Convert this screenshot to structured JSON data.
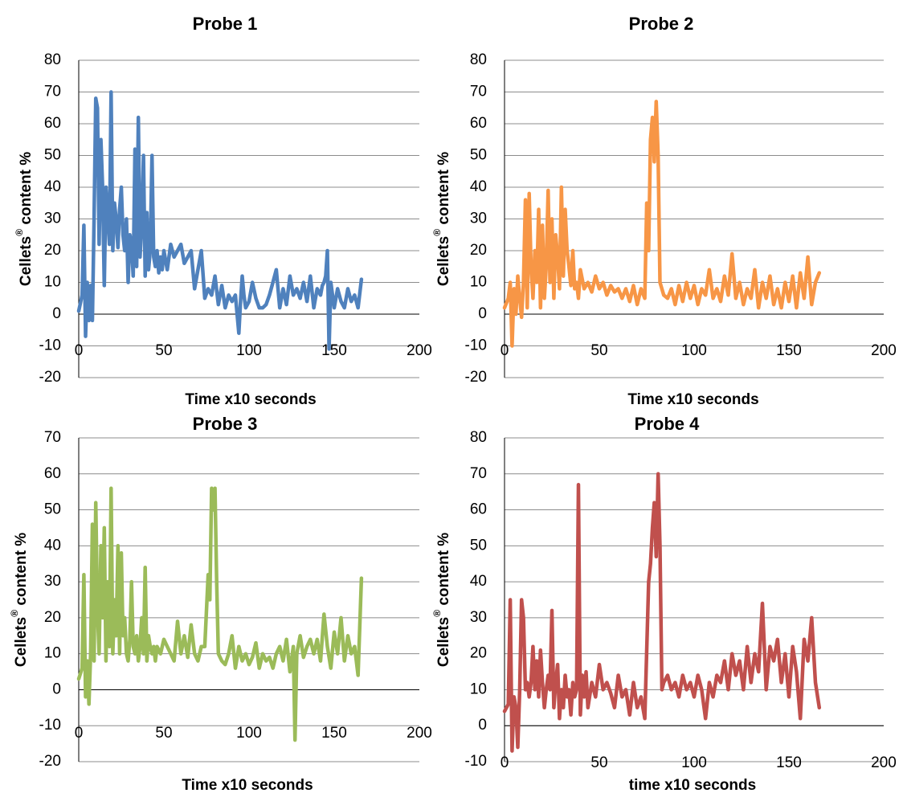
{
  "chart_data": [
    {
      "type": "line",
      "title": "Probe 1",
      "xlabel": "Time x10 seconds",
      "ylabel": "Cellets® content %",
      "xlim": [
        0,
        200
      ],
      "xticks": [
        0,
        50,
        100,
        150,
        200
      ],
      "ylim": [
        -20,
        80
      ],
      "yticks": [
        -20,
        -10,
        0,
        10,
        20,
        30,
        40,
        50,
        60,
        70,
        80
      ],
      "grid": true,
      "color": "#4f81bd",
      "series": [
        {
          "x": [
            0,
            2,
            3,
            4,
            5,
            6,
            7,
            8,
            9,
            10,
            11,
            12,
            13,
            14,
            15,
            16,
            17,
            18,
            19,
            20,
            21,
            22,
            23,
            24,
            25,
            26,
            27,
            28,
            29,
            30,
            31,
            32,
            33,
            34,
            35,
            36,
            37,
            38,
            39,
            40,
            41,
            42,
            43,
            44,
            45,
            46,
            47,
            48,
            49,
            50,
            52,
            54,
            56,
            58,
            60,
            62,
            64,
            66,
            68,
            70,
            72,
            74,
            76,
            78,
            80,
            82,
            84,
            86,
            88,
            90,
            92,
            94,
            95,
            96,
            97,
            98,
            100,
            102,
            104,
            106,
            108,
            110,
            112,
            114,
            116,
            118,
            120,
            122,
            124,
            126,
            128,
            130,
            132,
            134,
            136,
            138,
            140,
            142,
            143,
            144,
            145,
            146,
            147,
            148,
            150,
            152,
            154,
            156,
            158,
            160,
            162,
            164,
            166
          ],
          "values": [
            1,
            6,
            28,
            -7,
            10,
            -2,
            9,
            -2,
            30,
            68,
            65,
            22,
            55,
            40,
            9,
            40,
            32,
            22,
            70,
            20,
            35,
            30,
            21,
            33,
            40,
            25,
            20,
            30,
            10,
            25,
            22,
            12,
            52,
            15,
            62,
            18,
            28,
            50,
            12,
            32,
            14,
            20,
            50,
            18,
            15,
            20,
            13,
            18,
            14,
            20,
            14,
            22,
            18,
            20,
            22,
            16,
            18,
            20,
            8,
            14,
            20,
            5,
            8,
            6,
            12,
            3,
            9,
            2,
            6,
            4,
            6,
            -6,
            4,
            12,
            6,
            2,
            4,
            10,
            5,
            2,
            2,
            3,
            6,
            10,
            14,
            2,
            8,
            3,
            12,
            6,
            8,
            5,
            10,
            4,
            12,
            2,
            8,
            6,
            9,
            10,
            12,
            20,
            -11,
            10,
            2,
            8,
            4,
            2,
            8,
            4,
            6,
            2,
            11
          ]
        }
      ]
    },
    {
      "type": "line",
      "title": "Probe 2",
      "xlabel": "Time x10 seconds",
      "ylabel": "Cellets® content %",
      "xlim": [
        0,
        200
      ],
      "xticks": [
        0,
        50,
        100,
        150,
        200
      ],
      "ylim": [
        -20,
        80
      ],
      "yticks": [
        -20,
        -10,
        0,
        10,
        20,
        30,
        40,
        50,
        60,
        70,
        80
      ],
      "grid": true,
      "color": "#f79646",
      "series": [
        {
          "x": [
            0,
            2,
            3,
            4,
            5,
            6,
            7,
            8,
            9,
            10,
            11,
            12,
            13,
            14,
            15,
            16,
            17,
            18,
            19,
            20,
            21,
            22,
            23,
            24,
            25,
            26,
            27,
            28,
            29,
            30,
            31,
            32,
            33,
            34,
            35,
            36,
            37,
            38,
            39,
            40,
            42,
            44,
            46,
            48,
            50,
            52,
            54,
            56,
            58,
            60,
            62,
            64,
            66,
            68,
            70,
            72,
            74,
            75,
            76,
            77,
            78,
            79,
            80,
            81,
            82,
            84,
            86,
            88,
            90,
            92,
            94,
            96,
            98,
            100,
            102,
            104,
            106,
            108,
            110,
            112,
            114,
            116,
            118,
            120,
            122,
            124,
            126,
            128,
            130,
            132,
            134,
            136,
            138,
            140,
            142,
            144,
            146,
            148,
            150,
            152,
            154,
            156,
            158,
            160,
            162,
            164,
            166
          ],
          "values": [
            2,
            5,
            10,
            -10,
            8,
            0,
            12,
            5,
            -1,
            10,
            36,
            2,
            38,
            15,
            5,
            20,
            10,
            33,
            2,
            28,
            5,
            15,
            39,
            10,
            30,
            5,
            25,
            18,
            8,
            40,
            12,
            33,
            20,
            15,
            9,
            20,
            8,
            10,
            5,
            14,
            8,
            10,
            7,
            12,
            8,
            10,
            6,
            9,
            7,
            8,
            5,
            8,
            4,
            9,
            3,
            8,
            5,
            35,
            20,
            55,
            62,
            48,
            67,
            50,
            10,
            6,
            5,
            8,
            3,
            9,
            4,
            10,
            5,
            9,
            3,
            8,
            6,
            14,
            5,
            8,
            4,
            12,
            6,
            19,
            5,
            10,
            3,
            8,
            5,
            14,
            2,
            10,
            5,
            12,
            3,
            8,
            2,
            10,
            4,
            12,
            2,
            13,
            5,
            18,
            3,
            10,
            13
          ]
        }
      ]
    },
    {
      "type": "line",
      "title": "Probe 3",
      "xlabel": "Time x10 seconds",
      "ylabel": "Cellets® content %",
      "xlim": [
        0,
        200
      ],
      "xticks": [
        0,
        50,
        100,
        150,
        200
      ],
      "ylim": [
        -20,
        70
      ],
      "yticks": [
        -20,
        -10,
        0,
        10,
        20,
        30,
        40,
        50,
        60,
        70
      ],
      "grid": true,
      "color": "#9bbb59",
      "series": [
        {
          "x": [
            0,
            2,
            3,
            4,
            5,
            6,
            7,
            8,
            9,
            10,
            11,
            12,
            13,
            14,
            15,
            16,
            17,
            18,
            19,
            20,
            21,
            22,
            23,
            24,
            25,
            26,
            27,
            28,
            29,
            30,
            31,
            32,
            33,
            34,
            35,
            36,
            37,
            38,
            39,
            40,
            41,
            42,
            43,
            44,
            45,
            46,
            48,
            50,
            52,
            54,
            56,
            58,
            60,
            62,
            64,
            66,
            68,
            70,
            72,
            74,
            76,
            77,
            78,
            79,
            80,
            81,
            82,
            84,
            86,
            88,
            90,
            92,
            94,
            96,
            98,
            100,
            102,
            104,
            106,
            108,
            110,
            112,
            114,
            116,
            118,
            120,
            122,
            124,
            126,
            127,
            128,
            130,
            132,
            134,
            136,
            138,
            140,
            142,
            144,
            146,
            148,
            150,
            152,
            154,
            156,
            158,
            160,
            162,
            164,
            166
          ],
          "values": [
            3,
            6,
            32,
            -2,
            8,
            -4,
            10,
            46,
            8,
            52,
            22,
            10,
            40,
            20,
            45,
            8,
            30,
            12,
            56,
            10,
            25,
            15,
            40,
            10,
            38,
            15,
            20,
            10,
            8,
            14,
            30,
            12,
            10,
            15,
            8,
            12,
            20,
            10,
            34,
            8,
            15,
            12,
            10,
            12,
            8,
            12,
            10,
            14,
            12,
            10,
            8,
            19,
            10,
            15,
            9,
            18,
            10,
            8,
            12,
            12,
            32,
            25,
            56,
            50,
            56,
            30,
            10,
            8,
            7,
            10,
            15,
            6,
            12,
            8,
            10,
            7,
            9,
            13,
            6,
            10,
            8,
            9,
            6,
            10,
            12,
            8,
            14,
            5,
            12,
            -14,
            10,
            15,
            9,
            12,
            14,
            10,
            14,
            8,
            21,
            12,
            6,
            16,
            10,
            20,
            8,
            15,
            10,
            12,
            4,
            31
          ]
        }
      ]
    },
    {
      "type": "line",
      "title": "Probe 4",
      "xlabel": "time x10 seconds",
      "ylabel": "Cellets® content %",
      "xlim": [
        0,
        200
      ],
      "xticks": [
        0,
        50,
        100,
        150,
        200
      ],
      "ylim": [
        -10,
        80
      ],
      "yticks": [
        -10,
        0,
        10,
        20,
        30,
        40,
        50,
        60,
        70,
        80
      ],
      "grid": true,
      "color": "#c0504d",
      "series": [
        {
          "x": [
            0,
            2,
            3,
            4,
            5,
            6,
            7,
            8,
            9,
            10,
            11,
            12,
            13,
            14,
            15,
            16,
            17,
            18,
            19,
            20,
            21,
            22,
            23,
            24,
            25,
            26,
            27,
            28,
            29,
            30,
            31,
            32,
            33,
            34,
            35,
            36,
            37,
            38,
            39,
            40,
            41,
            42,
            43,
            44,
            46,
            48,
            50,
            52,
            54,
            56,
            58,
            60,
            62,
            64,
            66,
            68,
            70,
            72,
            74,
            76,
            77,
            78,
            79,
            80,
            81,
            82,
            83,
            84,
            86,
            88,
            90,
            92,
            94,
            96,
            98,
            100,
            102,
            104,
            106,
            108,
            110,
            112,
            114,
            116,
            118,
            120,
            122,
            124,
            126,
            128,
            130,
            132,
            134,
            136,
            138,
            140,
            142,
            144,
            146,
            148,
            150,
            152,
            154,
            156,
            158,
            160,
            162,
            164,
            166
          ],
          "values": [
            4,
            6,
            35,
            -7,
            8,
            5,
            -6,
            10,
            35,
            30,
            10,
            12,
            8,
            12,
            22,
            10,
            18,
            8,
            21,
            12,
            5,
            10,
            14,
            10,
            32,
            5,
            12,
            17,
            2,
            10,
            5,
            14,
            8,
            10,
            3,
            12,
            8,
            10,
            67,
            3,
            14,
            8,
            15,
            5,
            12,
            8,
            17,
            10,
            12,
            9,
            5,
            14,
            8,
            10,
            3,
            12,
            5,
            8,
            2,
            40,
            45,
            55,
            62,
            47,
            70,
            50,
            10,
            12,
            14,
            10,
            12,
            8,
            14,
            10,
            12,
            8,
            14,
            10,
            2,
            12,
            8,
            14,
            12,
            18,
            10,
            20,
            14,
            18,
            10,
            22,
            12,
            20,
            15,
            34,
            10,
            22,
            18,
            24,
            12,
            20,
            8,
            22,
            15,
            2,
            24,
            18,
            30,
            12,
            5
          ]
        }
      ]
    }
  ]
}
